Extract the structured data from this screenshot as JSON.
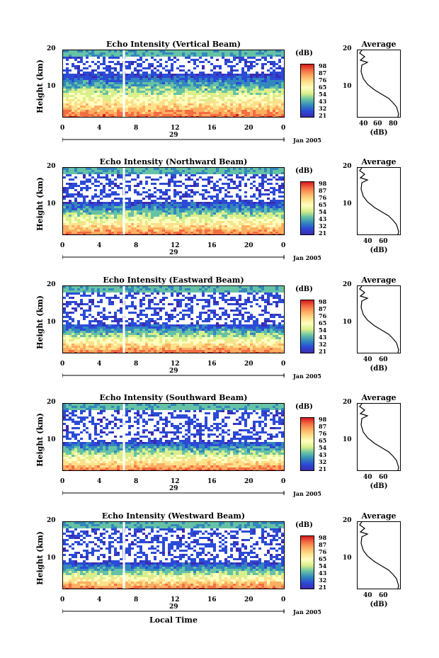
{
  "panels": [
    {
      "title": "Echo Intensity (Vertical Beam)",
      "gap_ratio": 0.35
    },
    {
      "title": "Echo Intensity (Northward Beam)",
      "gap_ratio": 0.5
    },
    {
      "title": "Echo Intensity (Eastward Beam)",
      "gap_ratio": 0.55
    },
    {
      "title": "Echo Intensity (Southward Beam)",
      "gap_ratio": 0.55
    },
    {
      "title": "Echo Intensity (Westward Beam)",
      "gap_ratio": 0.6
    }
  ],
  "ylabel": "Height (km)",
  "yticks": [
    "20",
    "10"
  ],
  "xticks": [
    "0",
    "4",
    "8",
    "12",
    "16",
    "20",
    "0"
  ],
  "day_label": "29",
  "date_label": "Jan 2005",
  "xlabel": "Local Time",
  "colorbar": {
    "title": "(dB)",
    "labels": [
      "98",
      "87",
      "76",
      "65",
      "54",
      "43",
      "32",
      "21"
    ],
    "colors": [
      "#d7191c",
      "#f46d43",
      "#fdae61",
      "#fee08b",
      "#ffffbf",
      "#d9ef8b",
      "#66c2a5",
      "#3288bd",
      "#2b4bd6",
      "#3b2bb0"
    ]
  },
  "average": {
    "title": "Average",
    "yticks": [
      "20",
      "10"
    ],
    "xticks_top": [
      "40",
      "60",
      "80"
    ],
    "xticks": [
      "40",
      "60"
    ],
    "xlabel": "(dB)"
  },
  "chart_data": [
    {
      "type": "heatmap",
      "title": "Echo Intensity (Vertical Beam)",
      "xlabel": "",
      "ylabel": "Height (km)",
      "xlim": [
        0,
        24
      ],
      "ylim": [
        2,
        20
      ],
      "zlim": [
        21,
        98
      ],
      "x_ticks": [
        0,
        4,
        8,
        12,
        16,
        20,
        24
      ],
      "y_ticks": [
        10,
        20
      ],
      "data_gap_hour": 6.5
    },
    {
      "type": "line",
      "title": "Average",
      "xlabel": "(dB)",
      "ylim": [
        2,
        20
      ],
      "xlim": [
        30,
        80
      ]
    },
    {
      "type": "heatmap",
      "title": "Echo Intensity (Northward Beam)",
      "ylabel": "Height (km)",
      "xlim": [
        0,
        24
      ],
      "ylim": [
        2,
        20
      ],
      "zlim": [
        21,
        98
      ],
      "data_gap_hour": 6.5
    },
    {
      "type": "line",
      "title": "Average",
      "xlabel": "(dB)",
      "ylim": [
        2,
        20
      ],
      "xlim": [
        30,
        80
      ]
    },
    {
      "type": "heatmap",
      "title": "Echo Intensity (Eastward Beam)",
      "ylabel": "Height (km)",
      "xlim": [
        0,
        24
      ],
      "ylim": [
        2,
        20
      ],
      "zlim": [
        21,
        98
      ],
      "data_gap_hour": 6.5
    },
    {
      "type": "line",
      "title": "Average",
      "xlabel": "(dB)",
      "ylim": [
        2,
        20
      ],
      "xlim": [
        30,
        80
      ]
    },
    {
      "type": "heatmap",
      "title": "Echo Intensity (Southward Beam)",
      "ylabel": "Height (km)",
      "xlim": [
        0,
        24
      ],
      "ylim": [
        2,
        20
      ],
      "zlim": [
        21,
        98
      ],
      "data_gap_hour": 6.5
    },
    {
      "type": "line",
      "title": "Average",
      "xlabel": "(dB)",
      "ylim": [
        2,
        20
      ],
      "xlim": [
        30,
        80
      ]
    },
    {
      "type": "heatmap",
      "title": "Echo Intensity (Westward Beam)",
      "xlabel": "Local Time",
      "ylabel": "Height (km)",
      "xlim": [
        0,
        24
      ],
      "ylim": [
        2,
        20
      ],
      "zlim": [
        21,
        98
      ],
      "data_gap_hour": 6.5
    },
    {
      "type": "line",
      "title": "Average",
      "xlabel": "(dB)",
      "ylim": [
        2,
        20
      ],
      "xlim": [
        30,
        80
      ]
    }
  ]
}
